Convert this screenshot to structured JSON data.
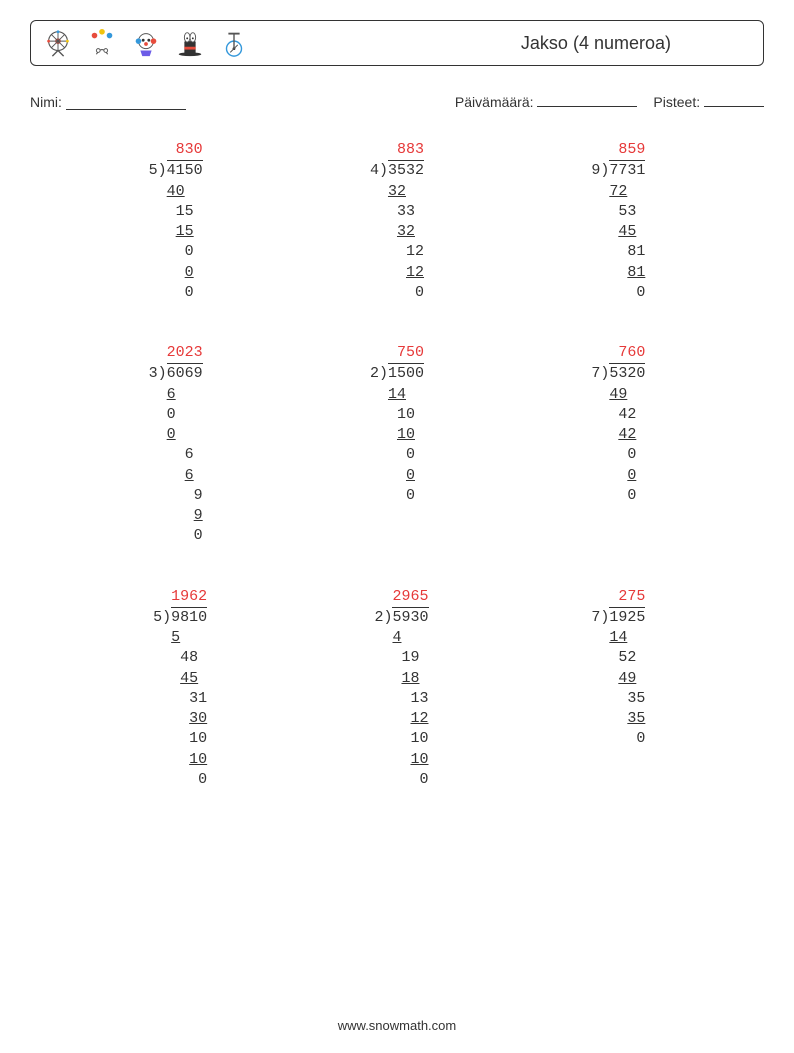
{
  "header": {
    "title": "Jakso (4 numeroa)",
    "icon_stroke": "#555",
    "icon_colors": {
      "red": "#e74c3c",
      "blue": "#3498db",
      "yellow": "#f1c40f",
      "purple": "#6c5ce7",
      "white": "#ffffff"
    }
  },
  "info": {
    "name_label": "Nimi:",
    "date_label": "Päivämäärä:",
    "score_label": "Pisteet:"
  },
  "footer": {
    "text": "www.snowmath.com"
  },
  "styles": {
    "quotient_color": "#e63939",
    "line_color": "#333333",
    "text_color": "#333333",
    "font_size_pt": 15,
    "font_family": "Courier New"
  },
  "problems": [
    {
      "divisor": "5",
      "dividend": "4150",
      "quotient": "830",
      "steps": [
        {
          "v": "40",
          "ulw": 2,
          "indent": 0
        },
        {
          "v": "15",
          "indent": 1
        },
        {
          "v": "15",
          "ulw": 2,
          "indent": 1
        },
        {
          "v": "0",
          "indent": 2
        },
        {
          "v": "0",
          "ulw": 1,
          "indent": 2
        },
        {
          "v": "0",
          "indent": 2
        }
      ]
    },
    {
      "divisor": "4",
      "dividend": "3532",
      "quotient": "883",
      "steps": [
        {
          "v": "32",
          "ulw": 2,
          "indent": 0
        },
        {
          "v": "33",
          "indent": 1
        },
        {
          "v": "32",
          "ulw": 2,
          "indent": 1
        },
        {
          "v": "12",
          "indent": 2
        },
        {
          "v": "12",
          "ulw": 2,
          "indent": 2
        },
        {
          "v": "0",
          "indent": 3
        }
      ]
    },
    {
      "divisor": "9",
      "dividend": "7731",
      "quotient": "859",
      "steps": [
        {
          "v": "72",
          "ulw": 2,
          "indent": 0
        },
        {
          "v": "53",
          "indent": 1
        },
        {
          "v": "45",
          "ulw": 2,
          "indent": 1
        },
        {
          "v": "81",
          "indent": 2
        },
        {
          "v": "81",
          "ulw": 2,
          "indent": 2
        },
        {
          "v": "0",
          "indent": 3
        }
      ]
    },
    {
      "divisor": "3",
      "dividend": "6069",
      "quotient": "2023",
      "steps": [
        {
          "v": "6",
          "ulw": 1,
          "indent": 0
        },
        {
          "v": "0",
          "indent": 0
        },
        {
          "v": "0",
          "ulw": 1,
          "indent": 0
        },
        {
          "v": "6",
          "indent": 2
        },
        {
          "v": "6",
          "ulw": 1,
          "indent": 2
        },
        {
          "v": "9",
          "indent": 3
        },
        {
          "v": "9",
          "ulw": 1,
          "indent": 3
        },
        {
          "v": "0",
          "indent": 3
        }
      ]
    },
    {
      "divisor": "2",
      "dividend": "1500",
      "quotient": "750",
      "steps": [
        {
          "v": "14",
          "ulw": 2,
          "indent": 0
        },
        {
          "v": "10",
          "indent": 1
        },
        {
          "v": "10",
          "ulw": 2,
          "indent": 1
        },
        {
          "v": "0",
          "indent": 2
        },
        {
          "v": "0",
          "ulw": 1,
          "indent": 2
        },
        {
          "v": "0",
          "indent": 2
        }
      ]
    },
    {
      "divisor": "7",
      "dividend": "5320",
      "quotient": "760",
      "steps": [
        {
          "v": "49",
          "ulw": 2,
          "indent": 0
        },
        {
          "v": "42",
          "indent": 1
        },
        {
          "v": "42",
          "ulw": 2,
          "indent": 1
        },
        {
          "v": "0",
          "indent": 2
        },
        {
          "v": "0",
          "ulw": 1,
          "indent": 2
        },
        {
          "v": "0",
          "indent": 2
        }
      ]
    },
    {
      "divisor": "5",
      "dividend": "9810",
      "quotient": "1962",
      "steps": [
        {
          "v": "5",
          "ulw": 1,
          "indent": 0
        },
        {
          "v": "48",
          "indent": 1
        },
        {
          "v": "45",
          "ulw": 2,
          "indent": 1
        },
        {
          "v": "31",
          "indent": 2
        },
        {
          "v": "30",
          "ulw": 2,
          "indent": 2
        },
        {
          "v": "10",
          "indent": 3
        },
        {
          "v": "10",
          "ulw": 2,
          "indent": 3
        },
        {
          "v": "0",
          "indent": 4
        }
      ]
    },
    {
      "divisor": "2",
      "dividend": "5930",
      "quotient": "2965",
      "steps": [
        {
          "v": "4",
          "ulw": 1,
          "indent": 0
        },
        {
          "v": "19",
          "indent": 1
        },
        {
          "v": "18",
          "ulw": 2,
          "indent": 1
        },
        {
          "v": "13",
          "indent": 2
        },
        {
          "v": "12",
          "ulw": 2,
          "indent": 2
        },
        {
          "v": "10",
          "indent": 3
        },
        {
          "v": "10",
          "ulw": 2,
          "indent": 3
        },
        {
          "v": "0",
          "indent": 4
        }
      ]
    },
    {
      "divisor": "7",
      "dividend": "1925",
      "quotient": "275",
      "steps": [
        {
          "v": "14",
          "ulw": 2,
          "indent": 0
        },
        {
          "v": "52",
          "indent": 1
        },
        {
          "v": "49",
          "ulw": 2,
          "indent": 1
        },
        {
          "v": "35",
          "indent": 2
        },
        {
          "v": "35",
          "ulw": 2,
          "indent": 2
        },
        {
          "v": "0",
          "indent": 3
        }
      ]
    }
  ]
}
